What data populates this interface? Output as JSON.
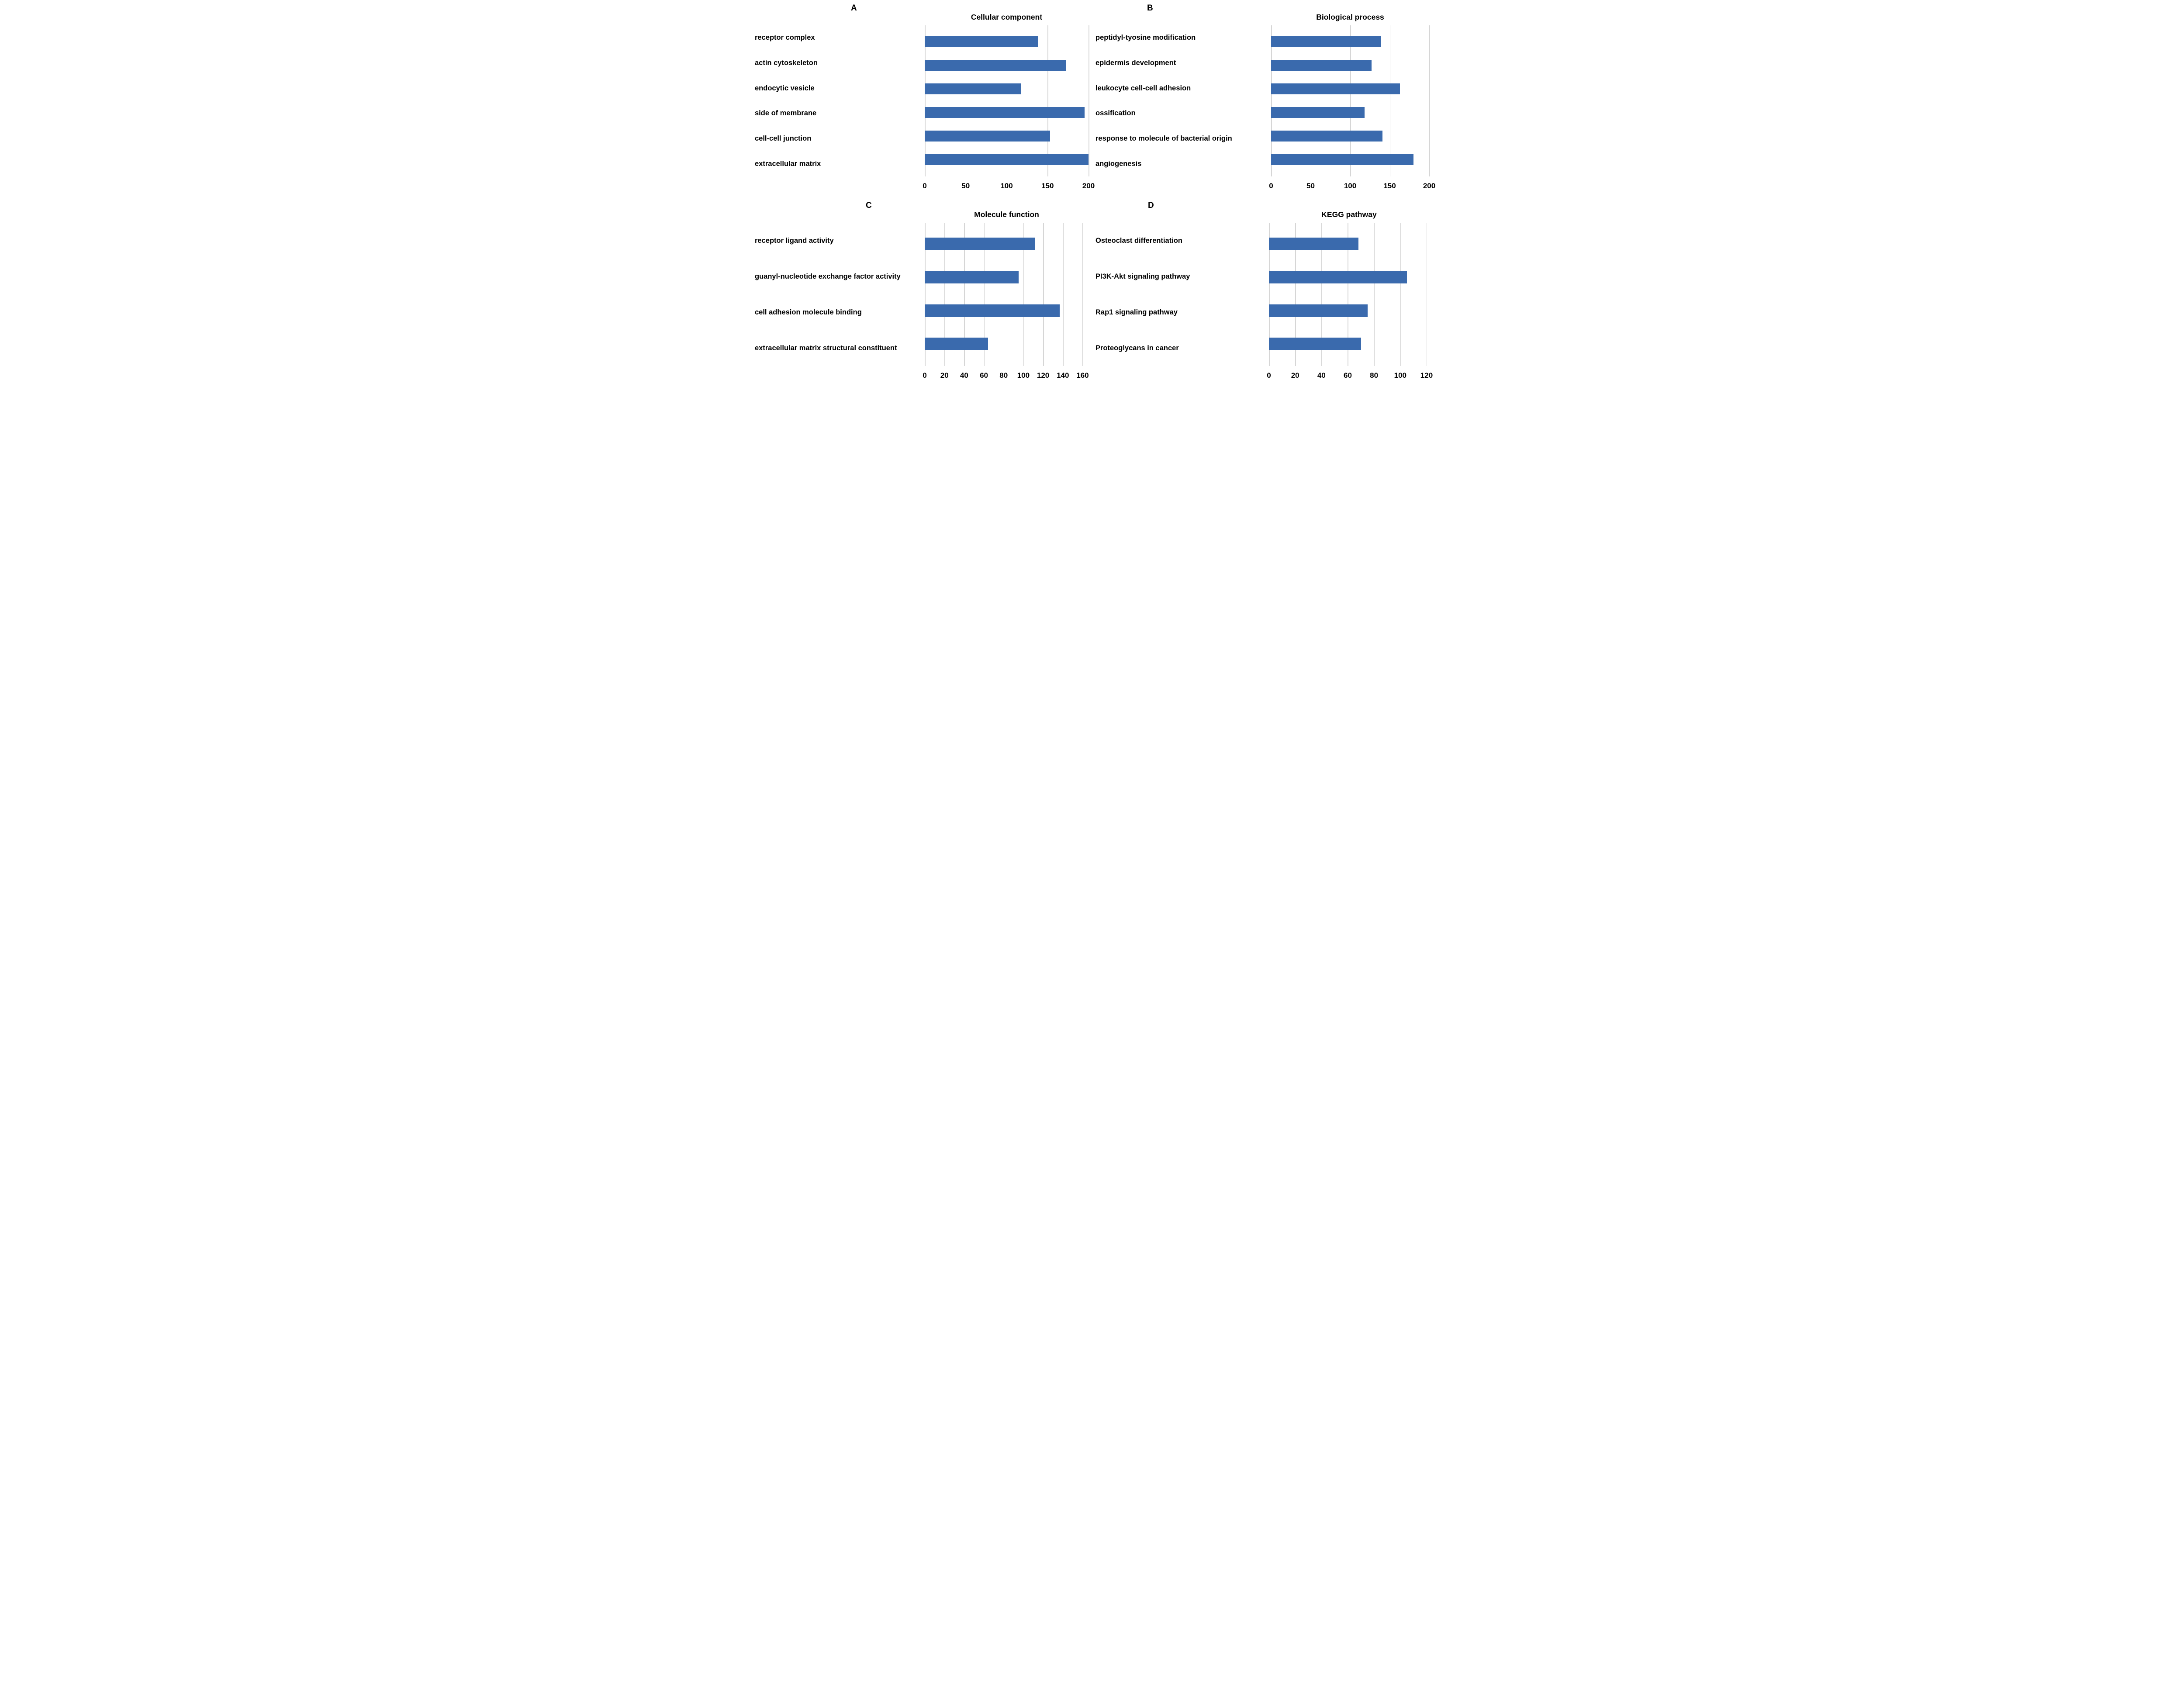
{
  "figure": {
    "background": "#ffffff",
    "bar_color": "#3a6aad",
    "grid_color": "#d6d6d6",
    "text_color": "#000000"
  },
  "chart_data": [
    {
      "panel": "A",
      "type": "bar",
      "orientation": "horizontal",
      "title": "Cellular component",
      "categories": [
        "receptor complex",
        "actin cytoskeleton",
        "endocytic vesicle",
        "side of membrane",
        "cell-cell junction",
        "extracellular matrix"
      ],
      "values": [
        138,
        172,
        118,
        195,
        153,
        200
      ],
      "xlabel": "",
      "ylabel": "",
      "xlim": [
        0,
        200
      ],
      "xticks": [
        0,
        50,
        100,
        150,
        200
      ],
      "grid": true,
      "legend": false
    },
    {
      "panel": "B",
      "type": "bar",
      "orientation": "horizontal",
      "title": "Biological process",
      "categories": [
        "peptidyl-tyosine modification",
        "epidermis development",
        "leukocyte cell-cell adhesion",
        "ossification",
        "response to molecule of bacterial origin",
        "angiogenesis"
      ],
      "values": [
        139,
        127,
        163,
        118,
        141,
        180
      ],
      "xlabel": "",
      "ylabel": "",
      "xlim": [
        0,
        200
      ],
      "xticks": [
        0,
        50,
        100,
        150,
        200
      ],
      "grid": true,
      "legend": false
    },
    {
      "panel": "C",
      "type": "bar",
      "orientation": "horizontal",
      "title": "Molecule function",
      "categories": [
        "receptor ligand activity",
        "guanyl-nucleotide exchange factor activity",
        "cell adhesion molecule binding",
        "extracellular matrix structural constituent"
      ],
      "values": [
        112,
        95,
        137,
        64
      ],
      "xlabel": "",
      "ylabel": "",
      "xlim": [
        0,
        166
      ],
      "xticks": [
        0,
        20,
        40,
        60,
        80,
        100,
        120,
        140,
        160
      ],
      "grid": true,
      "legend": false
    },
    {
      "panel": "D",
      "type": "bar",
      "orientation": "horizontal",
      "title": "KEGG pathway",
      "categories": [
        "Osteoclast differentiation",
        "PI3K-Akt signaling pathway",
        "Rap1 signaling pathway",
        "Proteoglycans in cancer"
      ],
      "values": [
        68,
        105,
        75,
        70
      ],
      "xlabel": "",
      "ylabel": "",
      "xlim": [
        0,
        122
      ],
      "xticks": [
        0,
        20,
        40,
        60,
        80,
        100,
        120
      ],
      "grid": true,
      "legend": false
    }
  ]
}
